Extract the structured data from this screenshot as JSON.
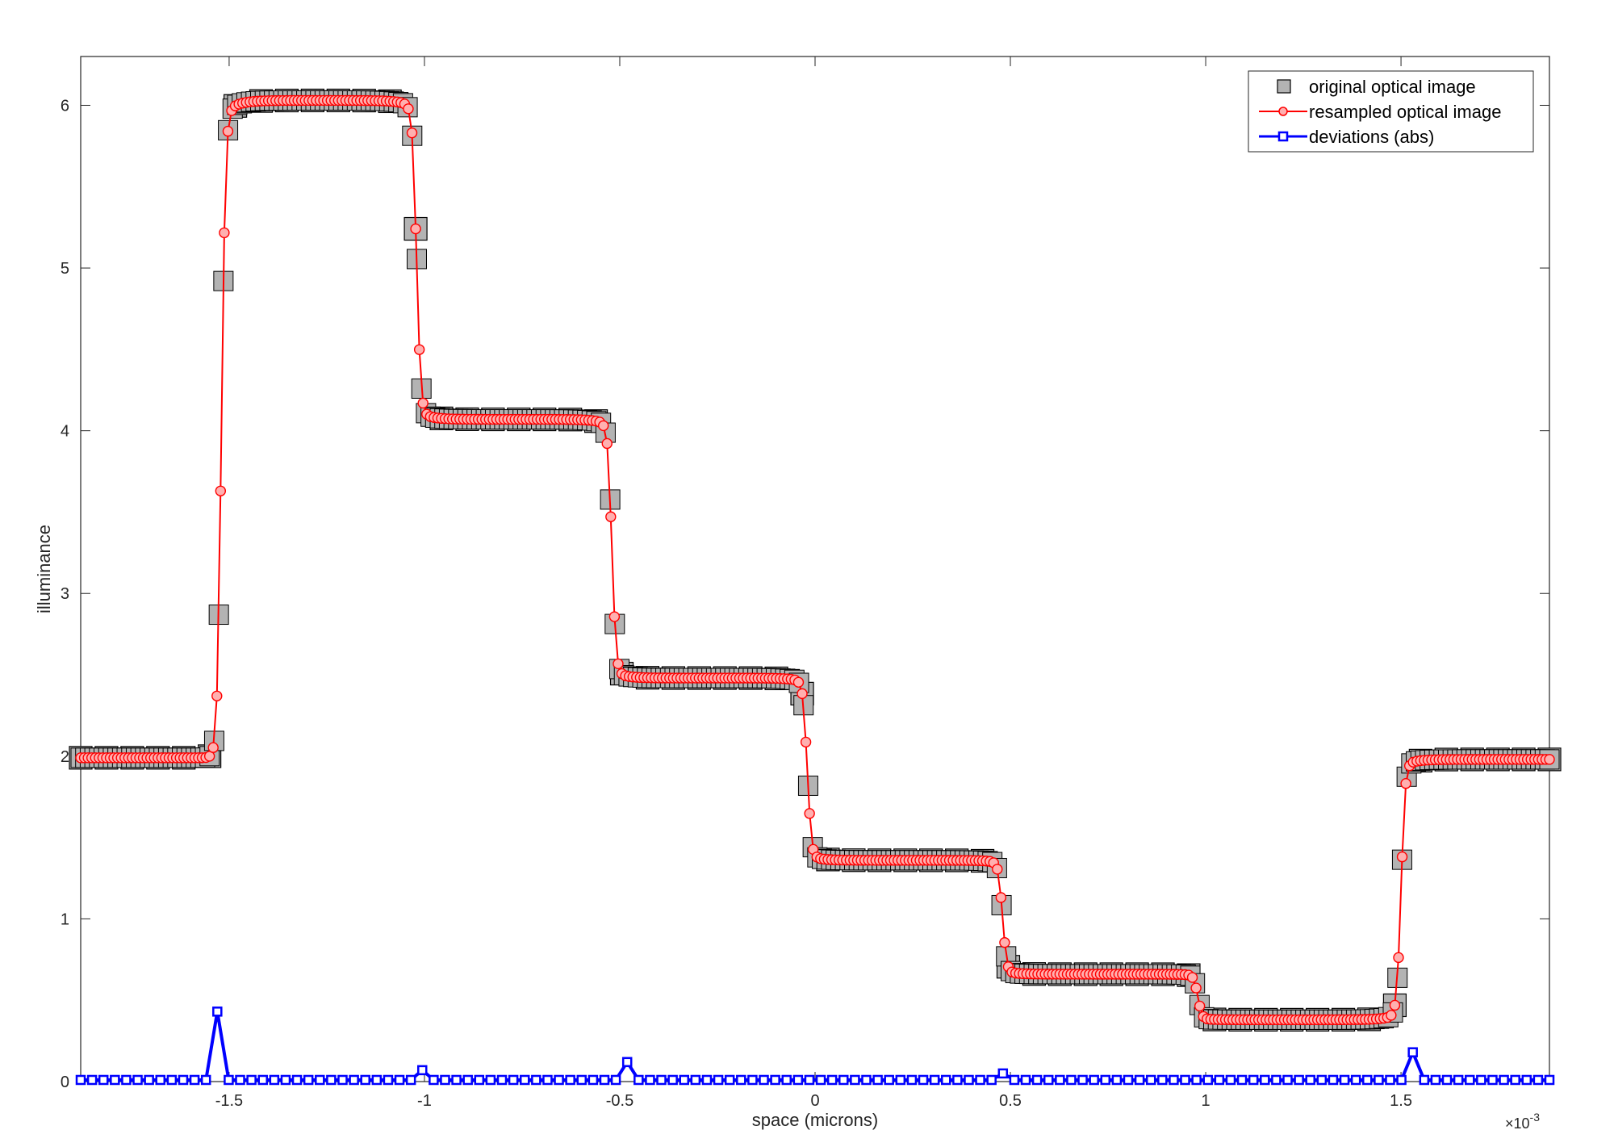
{
  "chart_data": {
    "type": "line",
    "xlabel": "space (microns)",
    "ylabel": "illuminance",
    "x_exponent_label": "×10",
    "x_exponent_power": "-3",
    "xlim": [
      -1.88,
      1.88
    ],
    "ylim": [
      0,
      6.3
    ],
    "x_ticks": [
      -1.5,
      -1,
      -0.5,
      0,
      0.5,
      1,
      1.5
    ],
    "x_tick_labels": [
      "-1.5",
      "-1",
      "-0.5",
      "0",
      "0.5",
      "1",
      "1.5"
    ],
    "y_ticks": [
      0,
      1,
      2,
      3,
      4,
      5,
      6
    ],
    "y_tick_labels": [
      "0",
      "1",
      "2",
      "3",
      "4",
      "5",
      "6"
    ],
    "grid": false,
    "legend_position": "top-right",
    "legend": [
      {
        "label": "original optical image",
        "style": "gray-square"
      },
      {
        "label": "resampled optical image",
        "style": "red-line-circle"
      },
      {
        "label": "deviations (abs)",
        "style": "blue-line-square"
      }
    ],
    "colors": {
      "original_fill": "#b3b3b3",
      "original_edge": "#000000",
      "resampled_line": "#ff0000",
      "resampled_fill": "#ffb0b0",
      "deviation_line": "#0000ff",
      "axes": "#262626"
    },
    "profile_segments": [
      {
        "x_start": -1.88,
        "x_end": -1.52,
        "level": 1.99,
        "plateau_level": 2.06
      },
      {
        "x_start": -1.52,
        "x_end": -1.02,
        "level": 6.03,
        "plateau_level": 6.04
      },
      {
        "x_start": -1.02,
        "x_end": -0.52,
        "level": 4.07,
        "plateau_level": 4.07
      },
      {
        "x_start": -0.52,
        "x_end": -0.02,
        "level": 2.48,
        "plateau_level": 2.46
      },
      {
        "x_start": -0.02,
        "x_end": 0.48,
        "level": 1.36,
        "plateau_level": 1.34
      },
      {
        "x_start": 0.48,
        "x_end": 0.98,
        "level": 0.66,
        "plateau_level": 0.64
      },
      {
        "x_start": 0.98,
        "x_end": 1.5,
        "level": 0.38,
        "plateau_level": 0.4
      },
      {
        "x_start": 1.5,
        "x_end": 1.88,
        "level": 1.98,
        "plateau_level": 1.98
      }
    ],
    "original_sample_count": 58,
    "resampled_sample_count": 400,
    "deviation_series": {
      "x_start": -1.88,
      "x_end": 1.88,
      "count": 130,
      "baseline": 0.01,
      "peaks": [
        {
          "x": -1.52,
          "value": 0.43
        },
        {
          "x": -1.02,
          "value": 0.07
        },
        {
          "x": -0.49,
          "value": 0.12
        },
        {
          "x": 0.48,
          "value": 0.05
        },
        {
          "x": 1.52,
          "value": 0.18
        }
      ]
    }
  }
}
